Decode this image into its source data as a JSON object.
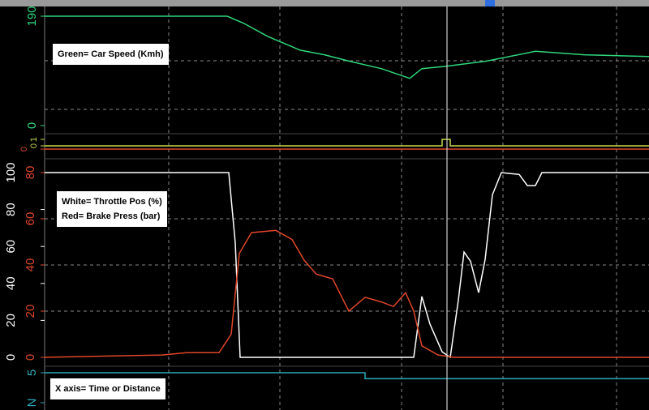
{
  "chart_data": [
    {
      "type": "line",
      "annotations": [
        "Green= Car Speed (Kmh)"
      ],
      "xlim": [
        0,
        745
      ],
      "ylim": [
        0,
        190
      ],
      "yticks": [
        0,
        190
      ],
      "series": [
        {
          "color": "#2fd67a",
          "x": [
            0,
            225,
            245,
            275,
            315,
            345,
            375,
            415,
            450,
            465,
            495,
            545,
            605,
            665,
            745
          ],
          "values": [
            190,
            190,
            178,
            155,
            131,
            123,
            112,
            99,
            82,
            99,
            103,
            112,
            129,
            123,
            120
          ]
        }
      ]
    },
    {
      "type": "line",
      "xlim": [
        0,
        745
      ],
      "ylim": [
        0,
        1
      ],
      "yticks": [
        0,
        1
      ],
      "y2lim": [
        0,
        1
      ],
      "y2ticks": [
        0
      ],
      "series": [
        {
          "color": "#c8d84a",
          "x": [
            0,
            490,
            490,
            500,
            500,
            745
          ],
          "values": [
            0,
            0,
            1,
            1,
            0,
            0
          ]
        },
        {
          "color": "#e0462a",
          "axis": "y2",
          "x": [
            0,
            745
          ],
          "values": [
            0,
            0
          ]
        }
      ]
    },
    {
      "type": "line",
      "annotations": [
        "White= Throttle Pos (%)",
        "Red= Brake Press (bar)"
      ],
      "xlim": [
        0,
        745
      ],
      "ylim": [
        0,
        100
      ],
      "yticks": [
        0,
        20,
        40,
        60,
        80,
        100
      ],
      "y2lim": [
        0,
        80
      ],
      "y2ticks": [
        0,
        20,
        40,
        60,
        80
      ],
      "grid": true,
      "series": [
        {
          "color": "#ffffff",
          "x": [
            0,
            227,
            235,
            241,
            455,
            465,
            475,
            490,
            500,
            510,
            517,
            525,
            535,
            543,
            552,
            563,
            585,
            595,
            605,
            613,
            745
          ],
          "values": [
            100,
            100,
            62,
            0,
            0,
            33,
            18,
            3,
            0,
            31,
            57,
            52,
            35,
            53,
            88,
            100,
            99,
            93,
            93,
            100,
            100
          ]
        },
        {
          "color": "#e0462a",
          "axis": "y2",
          "x": [
            0,
            145,
            175,
            215,
            230,
            240,
            255,
            285,
            305,
            320,
            335,
            355,
            375,
            395,
            415,
            430,
            445,
            455,
            465,
            485,
            505,
            745
          ],
          "values": [
            0,
            1,
            2,
            2,
            10,
            45,
            54,
            55,
            51,
            42,
            36,
            34,
            20,
            26,
            24,
            22,
            28,
            20,
            5,
            1,
            0,
            0
          ]
        }
      ]
    },
    {
      "type": "line",
      "annotations": [
        "X axis= Time or Distance"
      ],
      "xlim": [
        0,
        745
      ],
      "ylim": [
        0,
        5
      ],
      "yticks": [
        {
          "value": 0,
          "label": "N"
        },
        5
      ],
      "series": [
        {
          "color": "#2aa9b8",
          "x": [
            0,
            395,
            395,
            745
          ],
          "values": [
            5,
            5,
            4,
            4
          ]
        }
      ]
    }
  ]
}
